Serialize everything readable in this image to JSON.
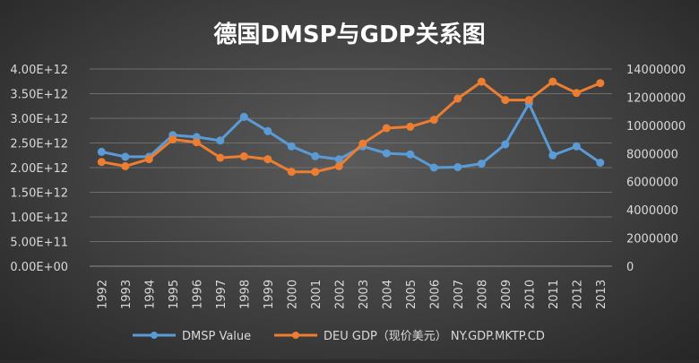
{
  "chart_data": {
    "type": "line",
    "title": "德国DMSP与GDP关系图",
    "categories": [
      "1992",
      "1993",
      "1994",
      "1995",
      "1996",
      "1997",
      "1998",
      "1999",
      "2000",
      "2001",
      "2002",
      "2003",
      "2004",
      "2005",
      "2006",
      "2007",
      "2008",
      "2009",
      "2010",
      "2011",
      "2012",
      "2013"
    ],
    "series": [
      {
        "name": "DMSP Value",
        "axis": "left",
        "color": "#5b9bd5",
        "values": [
          2320000000000.0,
          2220000000000.0,
          2220000000000.0,
          2660000000000.0,
          2620000000000.0,
          2550000000000.0,
          3030000000000.0,
          2740000000000.0,
          2430000000000.0,
          2230000000000.0,
          2170000000000.0,
          2430000000000.0,
          2290000000000.0,
          2270000000000.0,
          2000000000000.0,
          2010000000000.0,
          2080000000000.0,
          2470000000000.0,
          3300000000000.0,
          2250000000000.0,
          2430000000000.0,
          2100000000000.0
        ]
      },
      {
        "name": "DEU GDP（现价美元） NY.GDP.MKTP.CD",
        "axis": "right",
        "color": "#ed7d31",
        "values": [
          7400000,
          7100000,
          7600000,
          9000000,
          8800000,
          7700000,
          7800000,
          7600000,
          6700000,
          6700000,
          7100000,
          8700000,
          9800000,
          9900000,
          10400000,
          11900000,
          13100000,
          11800000,
          11800000,
          13100000,
          12300000,
          13000000
        ]
      }
    ],
    "left_axis": {
      "ylim": [
        0,
        4000000000000.0
      ],
      "ticks": [
        "0.00E+00",
        "5.00E+11",
        "1.00E+12",
        "1.50E+12",
        "2.00E+12",
        "2.50E+12",
        "3.00E+12",
        "3.50E+12",
        "4.00E+12"
      ]
    },
    "right_axis": {
      "ylim": [
        0,
        14000000
      ],
      "ticks": [
        "0",
        "2000000",
        "4000000",
        "6000000",
        "8000000",
        "10000000",
        "12000000",
        "14000000"
      ]
    },
    "grid": true,
    "legend_position": "bottom"
  }
}
